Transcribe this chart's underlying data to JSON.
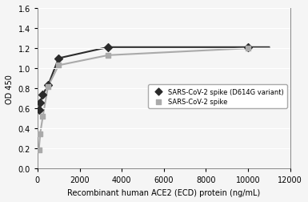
{
  "title": "",
  "xlabel": "Recombinant human ACE2 (ECD) protein (ng/mL)",
  "ylabel": "OD 450",
  "xlim": [
    0,
    12000
  ],
  "ylim": [
    0,
    1.6
  ],
  "xticks": [
    0,
    2000,
    4000,
    6000,
    8000,
    10000,
    12000
  ],
  "yticks": [
    0,
    0.2,
    0.4,
    0.6,
    0.8,
    1.0,
    1.2,
    1.4,
    1.6
  ],
  "series1_name": "SARS-CoV-2 spike (D614G variant)",
  "series1_color": "#2b2b2b",
  "series1_marker": "D",
  "series1_x": [
    62.5,
    125,
    250,
    500,
    1000,
    3333,
    10000
  ],
  "series1_y": [
    0.59,
    0.66,
    0.74,
    0.83,
    1.1,
    1.21,
    1.21
  ],
  "series2_name": "SARS-CoV-2 spike",
  "series2_color": "#aaaaaa",
  "series2_marker": "s",
  "series2_x": [
    62.5,
    125,
    250,
    500,
    1000,
    3333,
    10000
  ],
  "series2_y": [
    0.19,
    0.35,
    0.52,
    0.82,
    1.03,
    1.13,
    1.2
  ],
  "background_color": "#f5f5f5",
  "grid_color": "#ffffff",
  "figsize": [
    3.85,
    2.53
  ],
  "dpi": 100
}
